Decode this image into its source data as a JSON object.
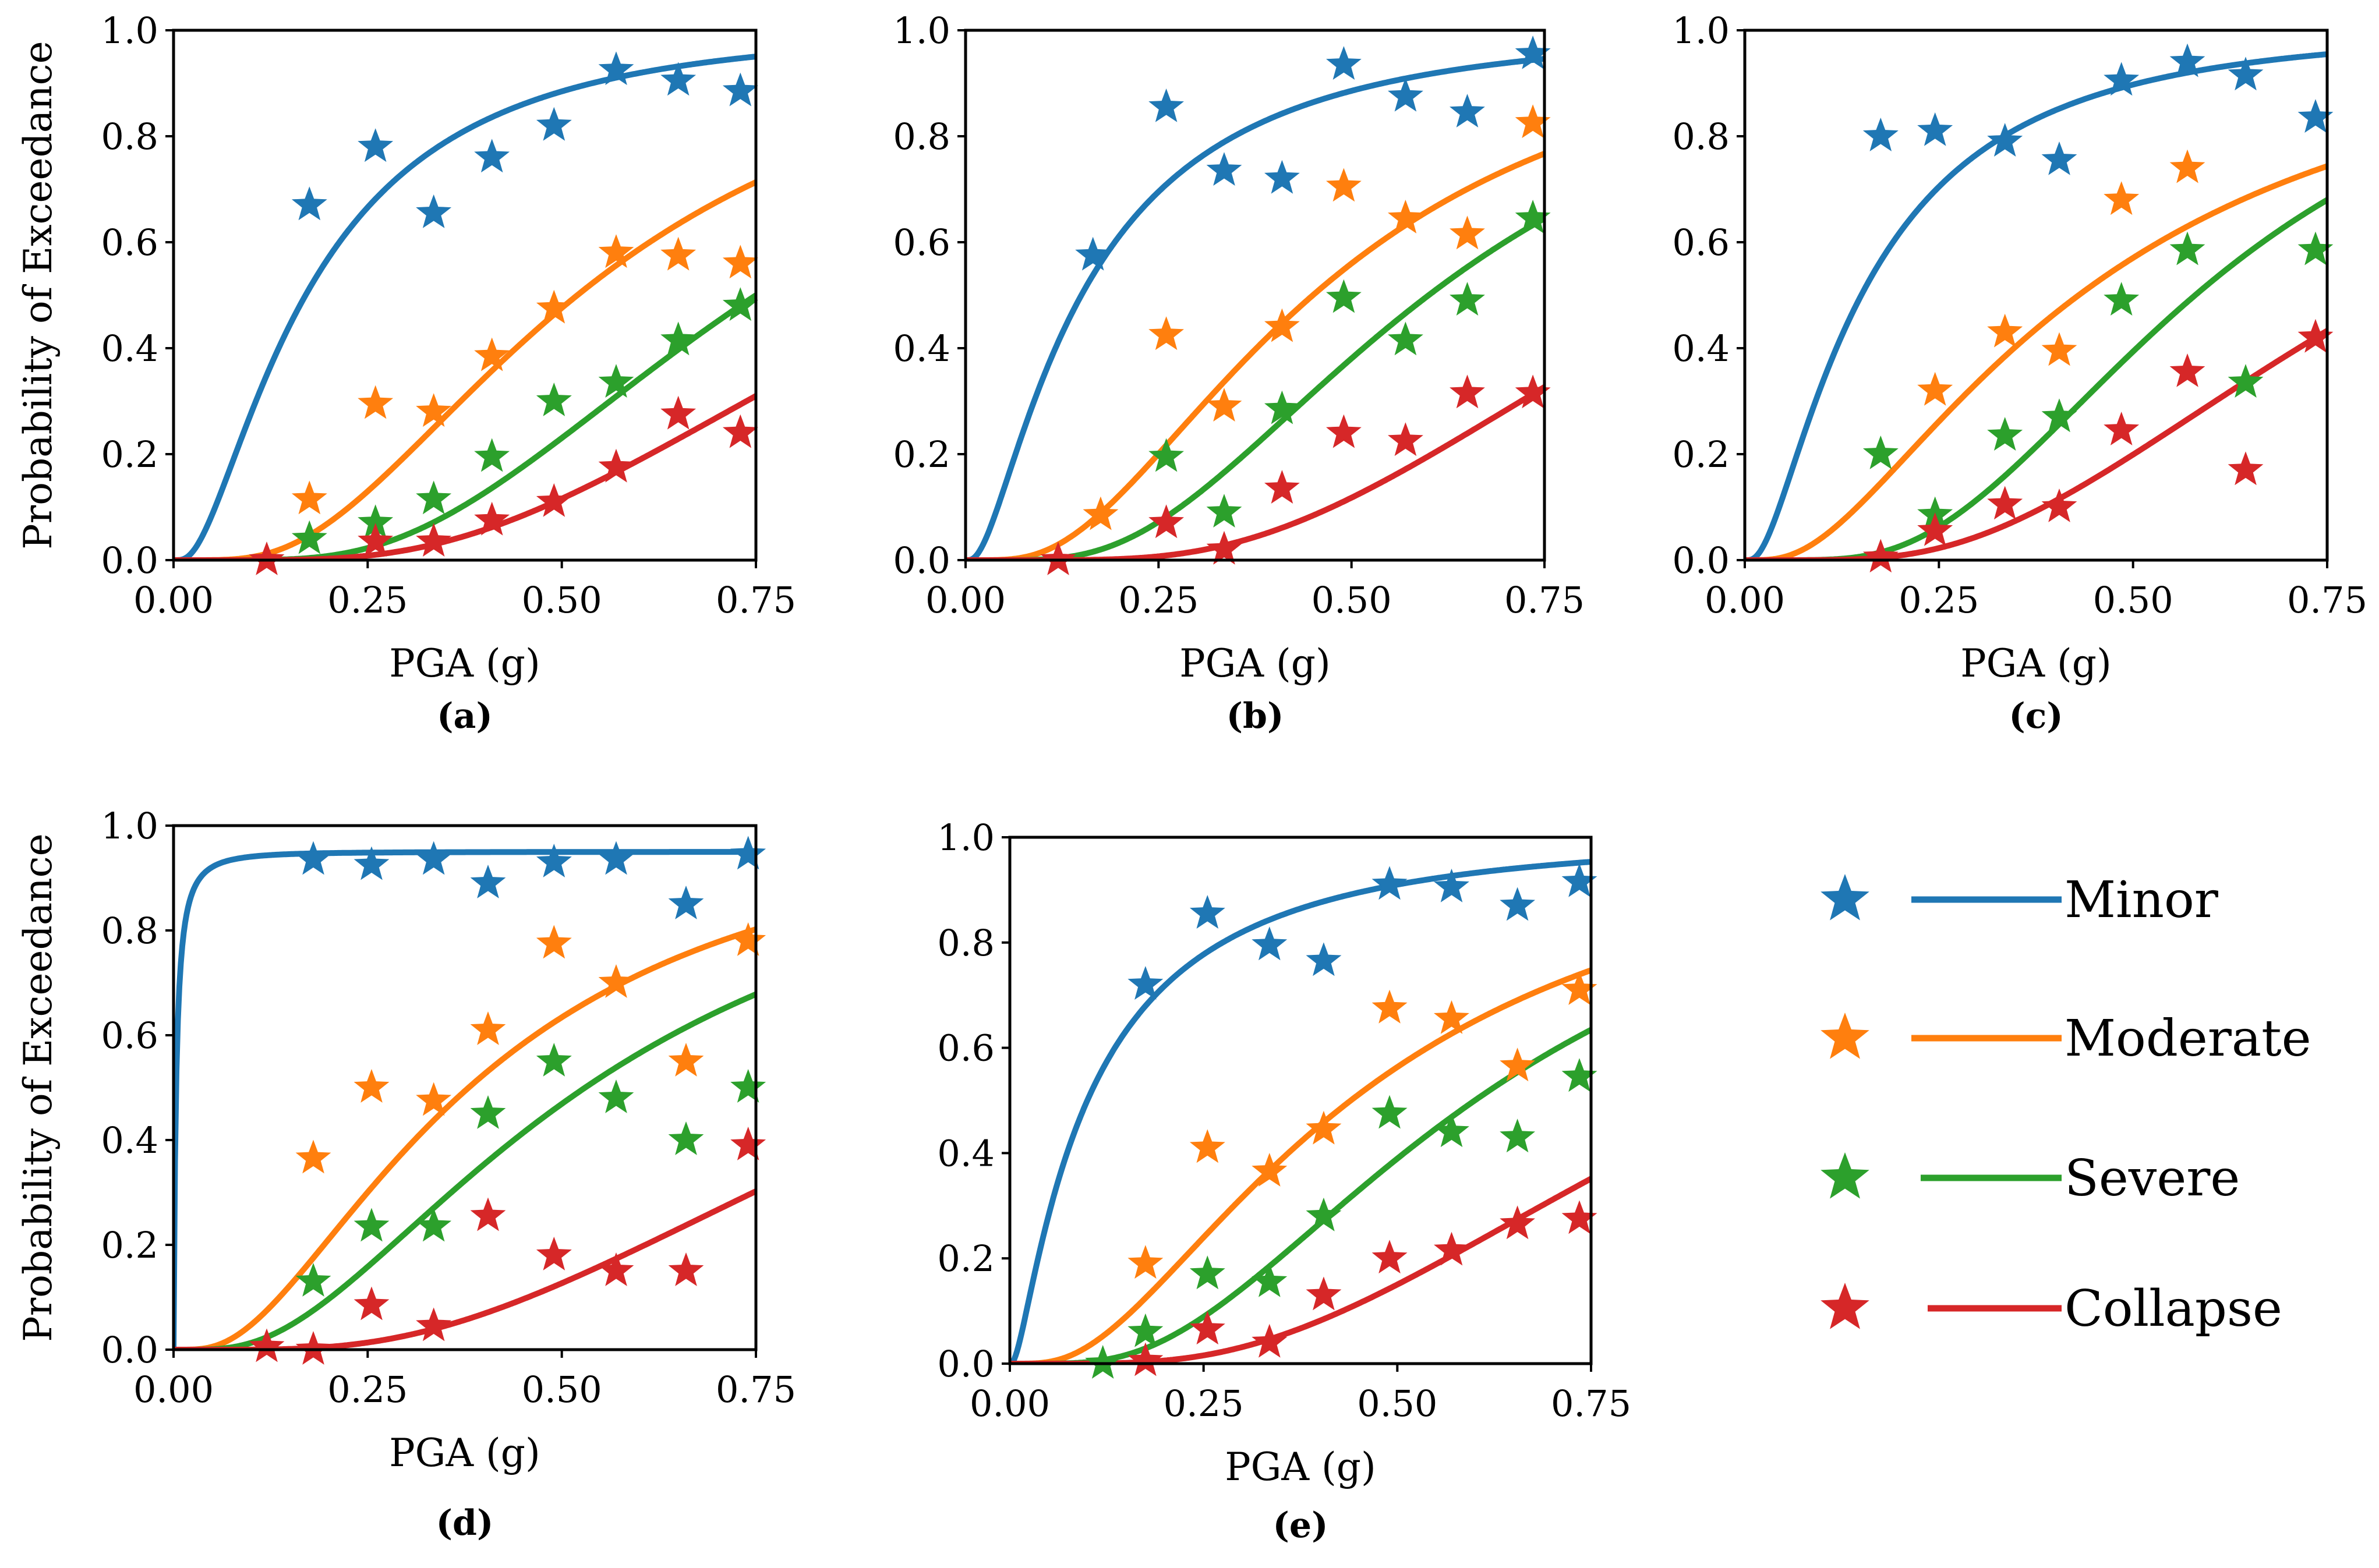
{
  "chart_data": [
    {
      "id": "a",
      "type": "line",
      "caption": "(a)",
      "xlabel": "PGA (g)",
      "ylabel": "Probability of Exceedance",
      "xlim": [
        0,
        0.75
      ],
      "ylim": [
        0,
        1.0
      ],
      "xticks": [
        "0.00",
        "0.25",
        "0.50",
        "0.75"
      ],
      "yticks": [
        "0.0",
        "0.2",
        "0.4",
        "0.6",
        "0.8",
        "1.0"
      ],
      "series": [
        {
          "name": "Minor",
          "color": "#1f77b4",
          "fit": {
            "median": 0.17,
            "beta": 0.9
          },
          "points": [
            [
              0.175,
              0.67
            ],
            [
              0.26,
              0.78
            ],
            [
              0.335,
              0.655
            ],
            [
              0.41,
              0.76
            ],
            [
              0.49,
              0.82
            ],
            [
              0.57,
              0.925
            ],
            [
              0.65,
              0.905
            ],
            [
              0.73,
              0.885
            ]
          ]
        },
        {
          "name": "Moderate",
          "color": "#ff7f0e",
          "fit": {
            "median": 0.52,
            "beta": 0.65
          },
          "points": [
            [
              0.175,
              0.115
            ],
            [
              0.26,
              0.295
            ],
            [
              0.335,
              0.28
            ],
            [
              0.41,
              0.385
            ],
            [
              0.49,
              0.475
            ],
            [
              0.57,
              0.58
            ],
            [
              0.65,
              0.575
            ],
            [
              0.73,
              0.56
            ]
          ]
        },
        {
          "name": "Severe",
          "color": "#2ca02c",
          "fit": {
            "median": 0.75,
            "beta": 0.55
          },
          "points": [
            [
              0.175,
              0.04
            ],
            [
              0.26,
              0.07
            ],
            [
              0.335,
              0.115
            ],
            [
              0.41,
              0.195
            ],
            [
              0.49,
              0.3
            ],
            [
              0.57,
              0.335
            ],
            [
              0.65,
              0.415
            ],
            [
              0.73,
              0.48
            ]
          ]
        },
        {
          "name": "Collapse",
          "color": "#d62728",
          "fit": {
            "median": 1.0,
            "beta": 0.58
          },
          "points": [
            [
              0.12,
              0.0
            ],
            [
              0.26,
              0.035
            ],
            [
              0.335,
              0.035
            ],
            [
              0.41,
              0.075
            ],
            [
              0.49,
              0.11
            ],
            [
              0.57,
              0.175
            ],
            [
              0.65,
              0.275
            ],
            [
              0.73,
              0.24
            ]
          ]
        }
      ]
    },
    {
      "id": "b",
      "type": "line",
      "caption": "(b)",
      "xlabel": "PGA (g)",
      "ylabel": "",
      "xlim": [
        0,
        0.75
      ],
      "ylim": [
        0,
        1.0
      ],
      "xticks": [
        "0.00",
        "0.25",
        "0.50",
        "0.75"
      ],
      "yticks": [
        "0.0",
        "0.2",
        "0.4",
        "0.6",
        "0.8",
        "1.0"
      ],
      "series": [
        {
          "name": "Minor",
          "color": "#1f77b4",
          "fit": {
            "median": 0.15,
            "beta": 1.0
          },
          "points": [
            [
              0.165,
              0.575
            ],
            [
              0.26,
              0.855
            ],
            [
              0.335,
              0.735
            ],
            [
              0.41,
              0.72
            ],
            [
              0.49,
              0.935
            ],
            [
              0.57,
              0.875
            ],
            [
              0.65,
              0.845
            ],
            [
              0.735,
              0.955
            ]
          ]
        },
        {
          "name": "Moderate",
          "color": "#ff7f0e",
          "fit": {
            "median": 0.45,
            "beta": 0.7
          },
          "points": [
            [
              0.175,
              0.085
            ],
            [
              0.26,
              0.425
            ],
            [
              0.335,
              0.29
            ],
            [
              0.41,
              0.44
            ],
            [
              0.49,
              0.705
            ],
            [
              0.57,
              0.645
            ],
            [
              0.65,
              0.615
            ],
            [
              0.735,
              0.825
            ]
          ]
        },
        {
          "name": "Severe",
          "color": "#2ca02c",
          "fit": {
            "median": 0.6,
            "beta": 0.6
          },
          "points": [
            [
              0.26,
              0.195
            ],
            [
              0.335,
              0.09
            ],
            [
              0.41,
              0.285
            ],
            [
              0.49,
              0.495
            ],
            [
              0.57,
              0.415
            ],
            [
              0.65,
              0.49
            ],
            [
              0.735,
              0.645
            ]
          ]
        },
        {
          "name": "Collapse",
          "color": "#d62728",
          "fit": {
            "median": 0.96,
            "beta": 0.55
          },
          "points": [
            [
              0.12,
              0.0
            ],
            [
              0.26,
              0.07
            ],
            [
              0.335,
              0.02
            ],
            [
              0.41,
              0.135
            ],
            [
              0.49,
              0.24
            ],
            [
              0.57,
              0.225
            ],
            [
              0.65,
              0.315
            ],
            [
              0.735,
              0.315
            ]
          ]
        }
      ]
    },
    {
      "id": "c",
      "type": "line",
      "caption": "(c)",
      "xlabel": "PGA (g)",
      "ylabel": "",
      "xlim": [
        0,
        0.75
      ],
      "ylim": [
        0,
        1.0
      ],
      "xticks": [
        "0.00",
        "0.25",
        "0.50",
        "0.75"
      ],
      "yticks": [
        "0.0",
        "0.2",
        "0.4",
        "0.6",
        "0.8",
        "1.0"
      ],
      "series": [
        {
          "name": "Minor",
          "color": "#1f77b4",
          "fit": {
            "median": 0.15,
            "beta": 0.95
          },
          "points": [
            [
              0.175,
              0.8
            ],
            [
              0.245,
              0.81
            ],
            [
              0.335,
              0.79
            ],
            [
              0.405,
              0.755
            ],
            [
              0.485,
              0.905
            ],
            [
              0.57,
              0.94
            ],
            [
              0.645,
              0.915
            ],
            [
              0.735,
              0.835
            ]
          ]
        },
        {
          "name": "Moderate",
          "color": "#ff7f0e",
          "fit": {
            "median": 0.43,
            "beta": 0.85
          },
          "points": [
            [
              0.245,
              0.32
            ],
            [
              0.335,
              0.43
            ],
            [
              0.405,
              0.395
            ],
            [
              0.485,
              0.68
            ],
            [
              0.57,
              0.74
            ]
          ]
        },
        {
          "name": "Severe",
          "color": "#2ca02c",
          "fit": {
            "median": 0.58,
            "beta": 0.55
          },
          "points": [
            [
              0.175,
              0.2
            ],
            [
              0.245,
              0.085
            ],
            [
              0.335,
              0.235
            ],
            [
              0.405,
              0.27
            ],
            [
              0.485,
              0.49
            ],
            [
              0.57,
              0.585
            ],
            [
              0.645,
              0.335
            ],
            [
              0.735,
              0.585
            ]
          ]
        },
        {
          "name": "Collapse",
          "color": "#d62728",
          "fit": {
            "median": 0.83,
            "beta": 0.6
          },
          "points": [
            [
              0.175,
              0.005
            ],
            [
              0.245,
              0.055
            ],
            [
              0.335,
              0.105
            ],
            [
              0.405,
              0.1
            ],
            [
              0.485,
              0.245
            ],
            [
              0.57,
              0.355
            ],
            [
              0.645,
              0.17
            ],
            [
              0.735,
              0.42
            ]
          ]
        }
      ]
    },
    {
      "id": "d",
      "type": "line",
      "caption": "(d)",
      "xlabel": "PGA (g)",
      "ylabel": "Probability of Exceedance",
      "xlim": [
        0,
        0.75
      ],
      "ylim": [
        0,
        1.0
      ],
      "xticks": [
        "0.00",
        "0.25",
        "0.50",
        "0.75"
      ],
      "yticks": [
        "0.0",
        "0.2",
        "0.4",
        "0.6",
        "0.8",
        "1.0"
      ],
      "series": [
        {
          "name": "Minor",
          "color": "#1f77b4",
          "fit": {
            "median": 0.003,
            "beta": 1.5,
            "cap": 0.95
          },
          "points": [
            [
              0.18,
              0.935
            ],
            [
              0.255,
              0.925
            ],
            [
              0.335,
              0.935
            ],
            [
              0.405,
              0.89
            ],
            [
              0.49,
              0.93
            ],
            [
              0.57,
              0.935
            ],
            [
              0.66,
              0.85
            ],
            [
              0.74,
              0.945
            ]
          ]
        },
        {
          "name": "Moderate",
          "color": "#ff7f0e",
          "fit": {
            "median": 0.38,
            "beta": 0.8
          },
          "points": [
            [
              0.18,
              0.365
            ],
            [
              0.255,
              0.5
            ],
            [
              0.335,
              0.475
            ],
            [
              0.405,
              0.61
            ],
            [
              0.49,
              0.775
            ],
            [
              0.57,
              0.7
            ],
            [
              0.66,
              0.55
            ],
            [
              0.74,
              0.78
            ]
          ]
        },
        {
          "name": "Severe",
          "color": "#2ca02c",
          "fit": {
            "median": 0.53,
            "beta": 0.75
          },
          "points": [
            [
              0.18,
              0.13
            ],
            [
              0.255,
              0.235
            ],
            [
              0.335,
              0.235
            ],
            [
              0.405,
              0.45
            ],
            [
              0.49,
              0.55
            ],
            [
              0.57,
              0.48
            ],
            [
              0.66,
              0.4
            ],
            [
              0.74,
              0.5
            ]
          ]
        },
        {
          "name": "Collapse",
          "color": "#d62728",
          "fit": {
            "median": 1.05,
            "beta": 0.65
          },
          "points": [
            [
              0.12,
              0.005
            ],
            [
              0.18,
              0.0
            ],
            [
              0.255,
              0.085
            ],
            [
              0.335,
              0.045
            ],
            [
              0.405,
              0.255
            ],
            [
              0.49,
              0.18
            ],
            [
              0.57,
              0.15
            ],
            [
              0.66,
              0.15
            ],
            [
              0.74,
              0.39
            ]
          ]
        }
      ]
    },
    {
      "id": "e",
      "type": "line",
      "caption": "(e)",
      "xlabel": "PGA (g)",
      "ylabel": "",
      "xlim": [
        0,
        0.75
      ],
      "ylim": [
        0,
        1.0
      ],
      "xticks": [
        "0.00",
        "0.25",
        "0.50",
        "0.75"
      ],
      "yticks": [
        "0.0",
        "0.2",
        "0.4",
        "0.6",
        "0.8",
        "1.0"
      ],
      "series": [
        {
          "name": "Minor",
          "color": "#1f77b4",
          "fit": {
            "median": 0.1,
            "beta": 1.2
          },
          "points": [
            [
              0.175,
              0.72
            ],
            [
              0.255,
              0.855
            ],
            [
              0.335,
              0.795
            ],
            [
              0.405,
              0.765
            ],
            [
              0.49,
              0.91
            ],
            [
              0.57,
              0.905
            ],
            [
              0.655,
              0.87
            ],
            [
              0.735,
              0.915
            ]
          ]
        },
        {
          "name": "Moderate",
          "color": "#ff7f0e",
          "fit": {
            "median": 0.44,
            "beta": 0.8
          },
          "points": [
            [
              0.175,
              0.19
            ],
            [
              0.255,
              0.41
            ],
            [
              0.335,
              0.365
            ],
            [
              0.405,
              0.445
            ],
            [
              0.49,
              0.675
            ],
            [
              0.57,
              0.655
            ],
            [
              0.655,
              0.565
            ],
            [
              0.735,
              0.71
            ]
          ]
        },
        {
          "name": "Severe",
          "color": "#2ca02c",
          "fit": {
            "median": 0.6,
            "beta": 0.65
          },
          "points": [
            [
              0.12,
              0.0
            ],
            [
              0.175,
              0.06
            ],
            [
              0.255,
              0.17
            ],
            [
              0.335,
              0.155
            ],
            [
              0.405,
              0.28
            ],
            [
              0.49,
              0.475
            ],
            [
              0.57,
              0.44
            ],
            [
              0.655,
              0.43
            ],
            [
              0.735,
              0.545
            ]
          ]
        },
        {
          "name": "Collapse",
          "color": "#d62728",
          "fit": {
            "median": 0.95,
            "beta": 0.62
          },
          "points": [
            [
              0.175,
              0.005
            ],
            [
              0.255,
              0.065
            ],
            [
              0.335,
              0.04
            ],
            [
              0.405,
              0.13
            ],
            [
              0.49,
              0.2
            ],
            [
              0.57,
              0.215
            ],
            [
              0.655,
              0.265
            ],
            [
              0.735,
              0.275
            ]
          ]
        }
      ]
    }
  ],
  "legend": [
    {
      "label": "Minor",
      "color": "#1f77b4"
    },
    {
      "label": "Moderate",
      "color": "#ff7f0e"
    },
    {
      "label": "Severe",
      "color": "#2ca02c"
    },
    {
      "label": "Collapse",
      "color": "#d62728"
    }
  ]
}
